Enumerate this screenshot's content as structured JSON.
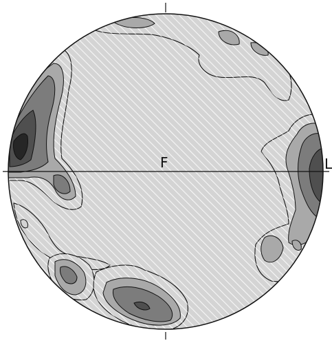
{
  "labels": {
    "center": "F",
    "right": "L"
  },
  "colors": {
    "background": "#ffffff",
    "level_1": "#d4d4d4",
    "level_2": "#a9a9a9",
    "level_3": "#7c7c7c",
    "level_4": "#4f4f4f",
    "level_5": "#262626",
    "hatch": "#f2f2f2",
    "outline": "#111111"
  }
}
